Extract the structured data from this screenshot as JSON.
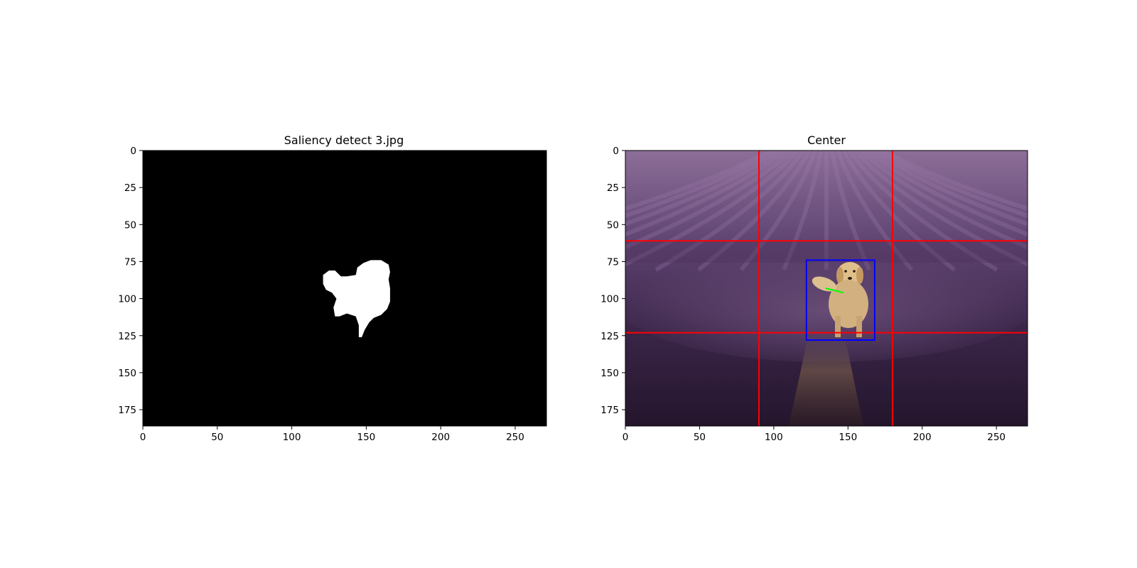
{
  "chart_data": [
    {
      "type": "heatmap",
      "title": "Saliency detect 3.jpg",
      "xlabel": "",
      "ylabel": "",
      "xlim": [
        0,
        271
      ],
      "ylim": [
        186,
        0
      ],
      "xticks": [
        0,
        50,
        100,
        150,
        200,
        250
      ],
      "yticks": [
        0,
        25,
        50,
        75,
        100,
        125,
        150,
        175
      ],
      "background": "#000000",
      "mask_color": "#ffffff",
      "mask_outline": [
        [
          121,
          84
        ],
        [
          125,
          81
        ],
        [
          129,
          81
        ],
        [
          133,
          85
        ],
        [
          137,
          85
        ],
        [
          143,
          84
        ],
        [
          144,
          79
        ],
        [
          148,
          76
        ],
        [
          153,
          74
        ],
        [
          160,
          74
        ],
        [
          165,
          77
        ],
        [
          166,
          82
        ],
        [
          165,
          87
        ],
        [
          166,
          93
        ],
        [
          166,
          102
        ],
        [
          164,
          107
        ],
        [
          160,
          111
        ],
        [
          155,
          113
        ],
        [
          152,
          116
        ],
        [
          149,
          121
        ],
        [
          147,
          126
        ],
        [
          145,
          126
        ],
        [
          145,
          118
        ],
        [
          143,
          112
        ],
        [
          137,
          110
        ],
        [
          132,
          112
        ],
        [
          129,
          112
        ],
        [
          128,
          106
        ],
        [
          130,
          100
        ],
        [
          127,
          96
        ],
        [
          123,
          94
        ],
        [
          121,
          90
        ]
      ]
    },
    {
      "type": "image-overlay",
      "title": "Center",
      "xlabel": "",
      "ylabel": "",
      "xlim": [
        0,
        271
      ],
      "ylim": [
        186,
        0
      ],
      "xticks": [
        0,
        50,
        100,
        150,
        200,
        250
      ],
      "yticks": [
        0,
        25,
        50,
        75,
        100,
        125,
        150,
        175
      ],
      "thirds_lines": {
        "color": "#ff0000",
        "x": [
          90,
          180
        ],
        "y": [
          61,
          123
        ]
      },
      "bbox": {
        "color": "#0000ff",
        "x0": 122,
        "y0": 74,
        "x1": 168,
        "y1": 128
      },
      "direction_line": {
        "color": "#00ff00",
        "points": [
          [
            135,
            93
          ],
          [
            147,
            96
          ]
        ]
      },
      "colors": {
        "field_dark": "#2a1a33",
        "field_mid": "#5a3d6a",
        "field_light": "#8a6a96",
        "dog": "#d2b080"
      }
    }
  ]
}
